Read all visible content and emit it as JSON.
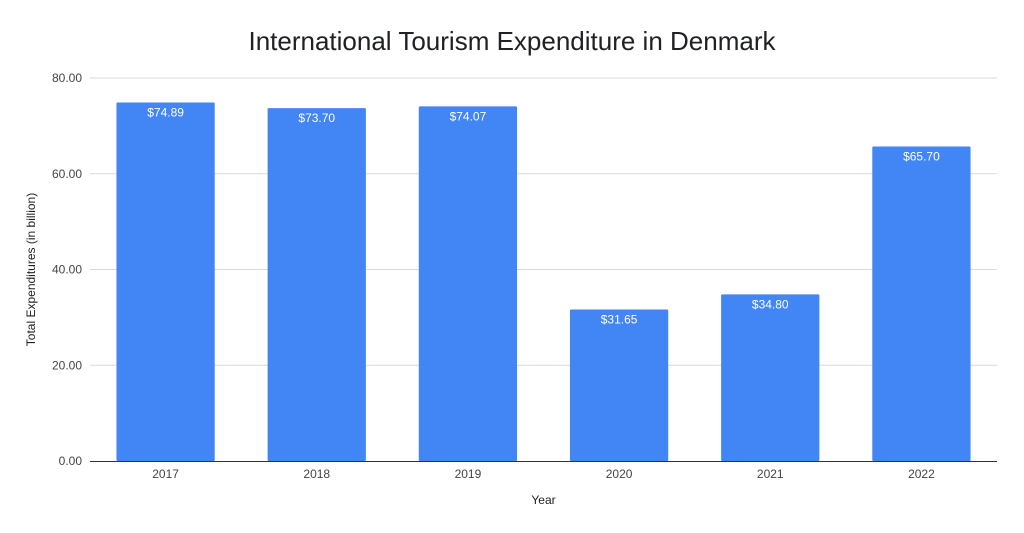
{
  "chart_data": {
    "type": "bar",
    "title": "International Tourism Expenditure in Denmark",
    "xlabel": "Year",
    "ylabel": "Total Expenditures (in billion)",
    "categories": [
      "2017",
      "2018",
      "2019",
      "2020",
      "2021",
      "2022"
    ],
    "values": [
      74.89,
      73.7,
      74.07,
      31.65,
      34.8,
      65.7
    ],
    "data_labels": [
      "$74.89",
      "$73.70",
      "$74.07",
      "$31.65",
      "$34.80",
      "$65.70"
    ],
    "ylim": [
      0,
      80
    ],
    "y_ticks": [
      0,
      20,
      40,
      60,
      80
    ],
    "y_tick_labels": [
      "0.00",
      "20.00",
      "40.00",
      "60.00",
      "80.00"
    ],
    "grid": true,
    "legend": "none",
    "bar_color": "#4285f4"
  }
}
